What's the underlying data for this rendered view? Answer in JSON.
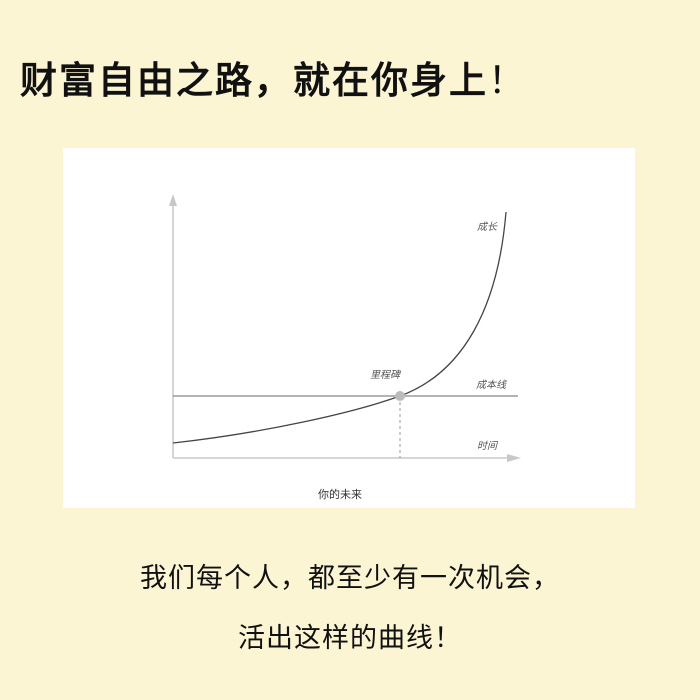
{
  "title": {
    "main": "财富自由之路，就在你身上",
    "exclaim": "！"
  },
  "diagram": {
    "labels": {
      "growth": "成长",
      "milestone": "里程碑",
      "cost_line": "成本线",
      "time": "时间"
    },
    "caption": "你的未来",
    "colors": {
      "curve": "#444444",
      "axis": "#bbbbbb",
      "cost_line": "#888888",
      "milestone_dot": "#bbbbbb"
    }
  },
  "body": {
    "line1": "我们每个人，都至少有一次机会，",
    "line2": "活出这样的曲线！"
  }
}
